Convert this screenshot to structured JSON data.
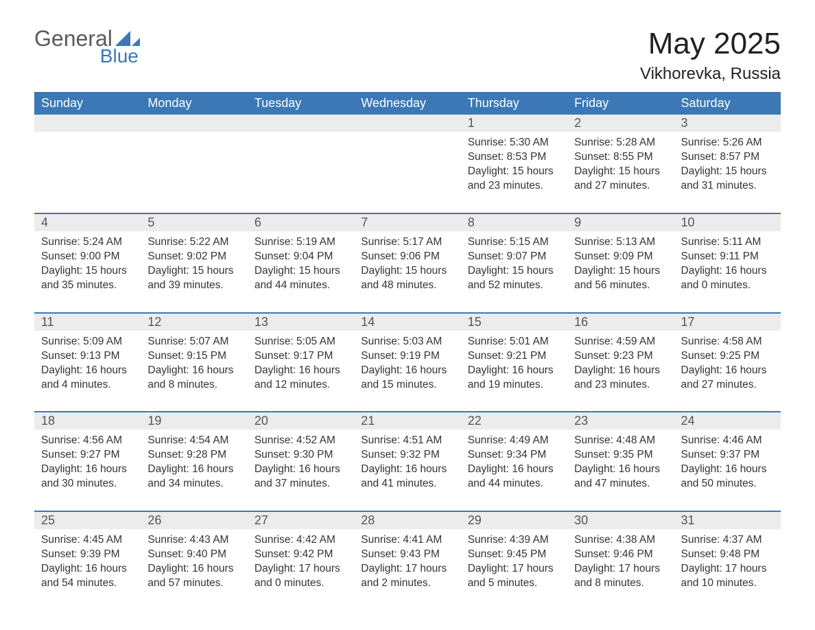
{
  "brand": {
    "name_a": "General",
    "name_b": "Blue",
    "tri_color": "#3b78b5"
  },
  "title": "May 2025",
  "location": "Vikhorevka, Russia",
  "colors": {
    "header_bg": "#3b78b5",
    "header_text": "#ffffff",
    "daynum_bg": "#ececec",
    "daynum_text": "#555555",
    "text": "#333333",
    "rule": "#3b78b5",
    "background": "#ffffff"
  },
  "weekdays": [
    "Sunday",
    "Monday",
    "Tuesday",
    "Wednesday",
    "Thursday",
    "Friday",
    "Saturday"
  ],
  "weeks": [
    [
      {
        "empty": true
      },
      {
        "empty": true
      },
      {
        "empty": true
      },
      {
        "empty": true
      },
      {
        "n": "1",
        "sunrise": "5:30 AM",
        "sunset": "8:53 PM",
        "daylight": "15 hours and 23 minutes."
      },
      {
        "n": "2",
        "sunrise": "5:28 AM",
        "sunset": "8:55 PM",
        "daylight": "15 hours and 27 minutes."
      },
      {
        "n": "3",
        "sunrise": "5:26 AM",
        "sunset": "8:57 PM",
        "daylight": "15 hours and 31 minutes."
      }
    ],
    [
      {
        "n": "4",
        "sunrise": "5:24 AM",
        "sunset": "9:00 PM",
        "daylight": "15 hours and 35 minutes."
      },
      {
        "n": "5",
        "sunrise": "5:22 AM",
        "sunset": "9:02 PM",
        "daylight": "15 hours and 39 minutes."
      },
      {
        "n": "6",
        "sunrise": "5:19 AM",
        "sunset": "9:04 PM",
        "daylight": "15 hours and 44 minutes."
      },
      {
        "n": "7",
        "sunrise": "5:17 AM",
        "sunset": "9:06 PM",
        "daylight": "15 hours and 48 minutes."
      },
      {
        "n": "8",
        "sunrise": "5:15 AM",
        "sunset": "9:07 PM",
        "daylight": "15 hours and 52 minutes."
      },
      {
        "n": "9",
        "sunrise": "5:13 AM",
        "sunset": "9:09 PM",
        "daylight": "15 hours and 56 minutes."
      },
      {
        "n": "10",
        "sunrise": "5:11 AM",
        "sunset": "9:11 PM",
        "daylight": "16 hours and 0 minutes."
      }
    ],
    [
      {
        "n": "11",
        "sunrise": "5:09 AM",
        "sunset": "9:13 PM",
        "daylight": "16 hours and 4 minutes."
      },
      {
        "n": "12",
        "sunrise": "5:07 AM",
        "sunset": "9:15 PM",
        "daylight": "16 hours and 8 minutes."
      },
      {
        "n": "13",
        "sunrise": "5:05 AM",
        "sunset": "9:17 PM",
        "daylight": "16 hours and 12 minutes."
      },
      {
        "n": "14",
        "sunrise": "5:03 AM",
        "sunset": "9:19 PM",
        "daylight": "16 hours and 15 minutes."
      },
      {
        "n": "15",
        "sunrise": "5:01 AM",
        "sunset": "9:21 PM",
        "daylight": "16 hours and 19 minutes."
      },
      {
        "n": "16",
        "sunrise": "4:59 AM",
        "sunset": "9:23 PM",
        "daylight": "16 hours and 23 minutes."
      },
      {
        "n": "17",
        "sunrise": "4:58 AM",
        "sunset": "9:25 PM",
        "daylight": "16 hours and 27 minutes."
      }
    ],
    [
      {
        "n": "18",
        "sunrise": "4:56 AM",
        "sunset": "9:27 PM",
        "daylight": "16 hours and 30 minutes."
      },
      {
        "n": "19",
        "sunrise": "4:54 AM",
        "sunset": "9:28 PM",
        "daylight": "16 hours and 34 minutes."
      },
      {
        "n": "20",
        "sunrise": "4:52 AM",
        "sunset": "9:30 PM",
        "daylight": "16 hours and 37 minutes."
      },
      {
        "n": "21",
        "sunrise": "4:51 AM",
        "sunset": "9:32 PM",
        "daylight": "16 hours and 41 minutes."
      },
      {
        "n": "22",
        "sunrise": "4:49 AM",
        "sunset": "9:34 PM",
        "daylight": "16 hours and 44 minutes."
      },
      {
        "n": "23",
        "sunrise": "4:48 AM",
        "sunset": "9:35 PM",
        "daylight": "16 hours and 47 minutes."
      },
      {
        "n": "24",
        "sunrise": "4:46 AM",
        "sunset": "9:37 PM",
        "daylight": "16 hours and 50 minutes."
      }
    ],
    [
      {
        "n": "25",
        "sunrise": "4:45 AM",
        "sunset": "9:39 PM",
        "daylight": "16 hours and 54 minutes."
      },
      {
        "n": "26",
        "sunrise": "4:43 AM",
        "sunset": "9:40 PM",
        "daylight": "16 hours and 57 minutes."
      },
      {
        "n": "27",
        "sunrise": "4:42 AM",
        "sunset": "9:42 PM",
        "daylight": "17 hours and 0 minutes."
      },
      {
        "n": "28",
        "sunrise": "4:41 AM",
        "sunset": "9:43 PM",
        "daylight": "17 hours and 2 minutes."
      },
      {
        "n": "29",
        "sunrise": "4:39 AM",
        "sunset": "9:45 PM",
        "daylight": "17 hours and 5 minutes."
      },
      {
        "n": "30",
        "sunrise": "4:38 AM",
        "sunset": "9:46 PM",
        "daylight": "17 hours and 8 minutes."
      },
      {
        "n": "31",
        "sunrise": "4:37 AM",
        "sunset": "9:48 PM",
        "daylight": "17 hours and 10 minutes."
      }
    ]
  ],
  "labels": {
    "sunrise": "Sunrise: ",
    "sunset": "Sunset: ",
    "daylight": "Daylight: "
  }
}
